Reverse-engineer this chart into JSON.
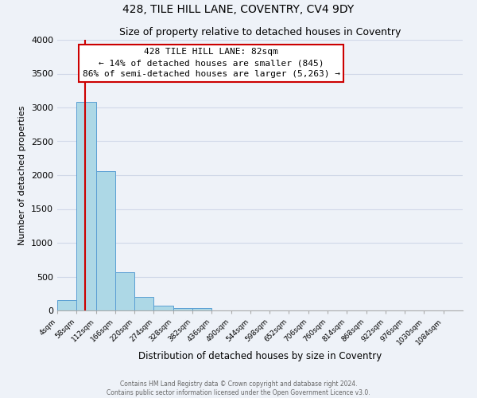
{
  "title": "428, TILE HILL LANE, COVENTRY, CV4 9DY",
  "subtitle": "Size of property relative to detached houses in Coventry",
  "xlabel": "Distribution of detached houses by size in Coventry",
  "ylabel": "Number of detached properties",
  "footer_lines": [
    "Contains HM Land Registry data © Crown copyright and database right 2024.",
    "Contains public sector information licensed under the Open Government Licence v3.0."
  ],
  "bin_edges": [
    4,
    58,
    112,
    166,
    220,
    274,
    328,
    382,
    436,
    490,
    544,
    598,
    652,
    706,
    760,
    814,
    868,
    922,
    976,
    1030,
    1084
  ],
  "bar_heights": [
    150,
    3080,
    2060,
    560,
    205,
    65,
    35,
    35,
    0,
    0,
    0,
    0,
    0,
    0,
    0,
    0,
    0,
    0,
    0,
    0
  ],
  "bar_color": "#add8e6",
  "bar_edge_color": "#5a9fd4",
  "grid_color": "#d0d8e8",
  "property_size": 82,
  "red_line_color": "#cc0000",
  "annotation_line1": "428 TILE HILL LANE: 82sqm",
  "annotation_line2": "← 14% of detached houses are smaller (845)",
  "annotation_line3": "86% of semi-detached houses are larger (5,263) →",
  "annotation_box_color": "#ffffff",
  "annotation_box_edge_color": "#cc0000",
  "ylim": [
    0,
    4000
  ],
  "yticks": [
    0,
    500,
    1000,
    1500,
    2000,
    2500,
    3000,
    3500,
    4000
  ],
  "background_color": "#eef2f8",
  "title_fontsize": 10,
  "subtitle_fontsize": 9
}
